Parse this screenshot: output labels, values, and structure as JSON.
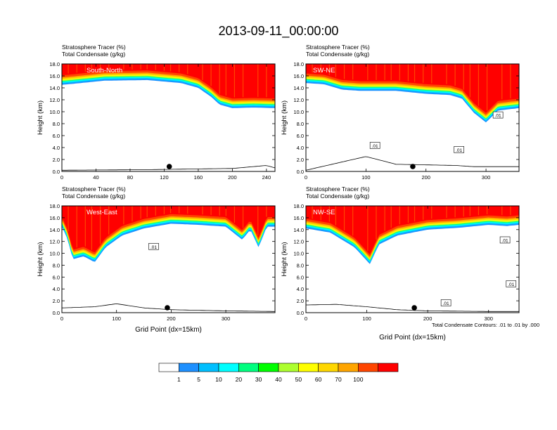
{
  "figure": {
    "title": "2013-09-11_00:00:00",
    "footnote": "Total Condensate Contours: .01 to .01 by .000"
  },
  "colorbar": {
    "levels": [
      "1",
      "5",
      "10",
      "20",
      "30",
      "40",
      "50",
      "60",
      "70",
      "100"
    ],
    "colors": [
      "#ffffff",
      "#1e90ff",
      "#00bfff",
      "#00ffff",
      "#00ff7f",
      "#00ff00",
      "#adff2f",
      "#ffff00",
      "#ffd700",
      "#ffa500",
      "#ff4500",
      "#ff0000"
    ]
  },
  "contour_label": ".01",
  "chart_data": [
    {
      "type": "heatmap",
      "subtitle1": "Stratosphere Tracer   (%)",
      "subtitle2": "Total Condensate   (g/kg)",
      "panel_label": "South-North",
      "ylabel": "Height (km)",
      "xlabel": "",
      "xlim": [
        0,
        250
      ],
      "ylim": [
        0,
        18
      ],
      "xticks": [
        "0",
        "40",
        "80",
        "120",
        "160",
        "200",
        "240"
      ],
      "xtick_values": [
        0,
        40,
        80,
        120,
        160,
        200,
        240
      ],
      "yticks": [
        "0.0",
        "2.0",
        "4.0",
        "6.0",
        "8.0",
        "10.0",
        "12.0",
        "14.0",
        "16.0",
        "18.0"
      ],
      "tropopause_km": [
        [
          0,
          14.5
        ],
        [
          15,
          14.7
        ],
        [
          50,
          15.2
        ],
        [
          100,
          15.3
        ],
        [
          140,
          14.8
        ],
        [
          160,
          14.0
        ],
        [
          175,
          12.5
        ],
        [
          185,
          11.2
        ],
        [
          200,
          10.6
        ],
        [
          225,
          10.7
        ],
        [
          250,
          10.6
        ]
      ],
      "terrain_km": [
        [
          0,
          0.2
        ],
        [
          100,
          0.3
        ],
        [
          150,
          0.4
        ],
        [
          200,
          0.5
        ],
        [
          240,
          1.0
        ],
        [
          250,
          0.6
        ]
      ],
      "marker_x": 126,
      "contour_labels": []
    },
    {
      "type": "heatmap",
      "subtitle1": "Stratosphere Tracer   (%)",
      "subtitle2": "Total Condensate   (g/kg)",
      "panel_label": "SW-NE",
      "ylabel": "Height (km)",
      "xlabel": "",
      "xlim": [
        0,
        355
      ],
      "ylim": [
        0,
        18
      ],
      "xticks": [
        "0",
        "100",
        "200",
        "300"
      ],
      "xtick_values": [
        0,
        100,
        200,
        300
      ],
      "yticks": [
        "0.0",
        "2.0",
        "4.0",
        "6.0",
        "8.0",
        "10.0",
        "12.0",
        "14.0",
        "16.0",
        "18.0"
      ],
      "tropopause_km": [
        [
          0,
          14.8
        ],
        [
          30,
          14.6
        ],
        [
          60,
          13.7
        ],
        [
          90,
          13.5
        ],
        [
          150,
          13.5
        ],
        [
          200,
          13.0
        ],
        [
          240,
          12.8
        ],
        [
          260,
          12.2
        ],
        [
          280,
          9.8
        ],
        [
          300,
          8.2
        ],
        [
          320,
          10.2
        ],
        [
          355,
          10.6
        ]
      ],
      "terrain_km": [
        [
          0,
          0.2
        ],
        [
          100,
          2.5
        ],
        [
          150,
          1.2
        ],
        [
          250,
          1.0
        ],
        [
          280,
          0.8
        ],
        [
          355,
          0.8
        ]
      ],
      "marker_x": 178,
      "contour_labels": [
        [
          115,
          4.3
        ],
        [
          255,
          3.6
        ],
        [
          320,
          9.4
        ]
      ]
    },
    {
      "type": "heatmap",
      "subtitle1": "Stratosphere Tracer   (%)",
      "subtitle2": "Total Condensate   (g/kg)",
      "panel_label": "West-East",
      "ylabel": "Height (km)",
      "xlabel": "Grid Point (dx=15km)",
      "xlim": [
        0,
        390
      ],
      "ylim": [
        0,
        18
      ],
      "xticks": [
        "0",
        "100",
        "200",
        "300"
      ],
      "xtick_values": [
        0,
        100,
        200,
        300
      ],
      "yticks": [
        "0.0",
        "2.0",
        "4.0",
        "6.0",
        "8.0",
        "10.0",
        "12.0",
        "14.0",
        "16.0",
        "18.0"
      ],
      "tropopause_km": [
        [
          0,
          14.5
        ],
        [
          10,
          12.5
        ],
        [
          20,
          9.0
        ],
        [
          40,
          9.5
        ],
        [
          60,
          8.5
        ],
        [
          80,
          11.0
        ],
        [
          110,
          13.0
        ],
        [
          150,
          14.2
        ],
        [
          200,
          15.0
        ],
        [
          250,
          14.8
        ],
        [
          300,
          14.5
        ],
        [
          330,
          12.3
        ],
        [
          345,
          14.0
        ],
        [
          360,
          11.0
        ],
        [
          375,
          14.5
        ],
        [
          390,
          14.5
        ]
      ],
      "terrain_km": [
        [
          0,
          0.8
        ],
        [
          60,
          1.0
        ],
        [
          100,
          1.5
        ],
        [
          150,
          0.8
        ],
        [
          200,
          0.5
        ],
        [
          300,
          0.3
        ],
        [
          390,
          0.2
        ]
      ],
      "marker_x": 193,
      "contour_labels": [
        [
          168,
          11.1
        ]
      ]
    },
    {
      "type": "heatmap",
      "subtitle1": "Stratosphere Tracer   (%)",
      "subtitle2": "Total Condensate   (g/kg)",
      "panel_label": "NW-SE",
      "ylabel": "Height (km)",
      "xlabel": "Grid Point (dx=15km)",
      "xlim": [
        0,
        350
      ],
      "ylim": [
        0,
        18
      ],
      "xticks": [
        "0",
        "100",
        "200",
        "300"
      ],
      "xtick_values": [
        0,
        100,
        200,
        300
      ],
      "yticks": [
        "0.0",
        "2.0",
        "4.0",
        "6.0",
        "8.0",
        "10.0",
        "12.0",
        "14.0",
        "16.0",
        "18.0"
      ],
      "tropopause_km": [
        [
          0,
          14.2
        ],
        [
          40,
          13.5
        ],
        [
          80,
          11.0
        ],
        [
          105,
          8.2
        ],
        [
          120,
          11.5
        ],
        [
          150,
          13.0
        ],
        [
          200,
          14.0
        ],
        [
          250,
          14.3
        ],
        [
          300,
          14.8
        ],
        [
          330,
          14.6
        ],
        [
          350,
          14.8
        ]
      ],
      "terrain_km": [
        [
          0,
          1.3
        ],
        [
          50,
          1.4
        ],
        [
          100,
          1.0
        ],
        [
          150,
          0.5
        ],
        [
          200,
          0.3
        ],
        [
          300,
          0.2
        ],
        [
          350,
          0.2
        ]
      ],
      "marker_x": 178,
      "contour_labels": [
        [
          230,
          1.6
        ],
        [
          327,
          12.2
        ],
        [
          337,
          4.8
        ]
      ]
    }
  ]
}
